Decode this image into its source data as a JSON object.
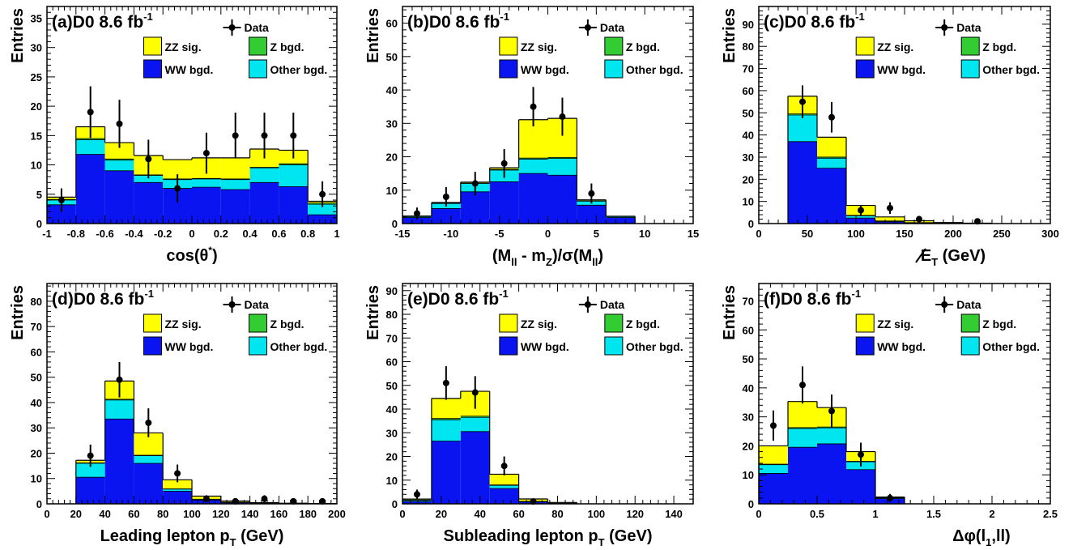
{
  "colors": {
    "zz": "#ffff00",
    "z": "#33cc33",
    "ww": "#0a14f0",
    "other": "#00e6f0",
    "data": "#000000"
  },
  "chart_data": [
    {
      "id": "a",
      "type": "bar",
      "stacked": true,
      "label_letter": "(a)",
      "label_rest": "D0 8.6 fb",
      "label_sup": "-1",
      "xlabel": "cos(θ",
      "xlabel_sup": "*",
      "xlabel_tail": ")",
      "ylabel": "Entries",
      "xlim": [
        -1,
        1
      ],
      "ylim": [
        0,
        37
      ],
      "xticks": [
        -1,
        -0.8,
        -0.6,
        -0.4,
        -0.2,
        0,
        0.2,
        0.4,
        0.6,
        0.8,
        1
      ],
      "yticks": [
        0,
        5,
        10,
        15,
        20,
        25,
        30,
        35
      ],
      "bin_edges": [
        -1,
        -0.8,
        -0.6,
        -0.4,
        -0.2,
        0,
        0.2,
        0.4,
        0.6,
        0.8,
        1
      ],
      "series": [
        {
          "name": "WW bgd.",
          "key": "ww",
          "values": [
            3.2,
            11.8,
            9.0,
            7.0,
            6.0,
            6.2,
            5.8,
            7.0,
            6.3,
            1.5
          ]
        },
        {
          "name": "Other bgd.",
          "key": "other",
          "values": [
            0.8,
            2.5,
            1.8,
            1.2,
            1.5,
            1.4,
            1.7,
            2.5,
            3.7,
            1.8
          ]
        },
        {
          "name": "Z bgd.",
          "key": "z",
          "values": [
            0.1,
            0.2,
            0.2,
            0.1,
            0.1,
            0.1,
            0.1,
            0.1,
            0.2,
            0.2
          ]
        },
        {
          "name": "ZZ sig.",
          "key": "zz",
          "values": [
            0.4,
            2.0,
            2.8,
            3.3,
            3.3,
            3.5,
            3.6,
            3.1,
            2.3,
            0.3
          ]
        }
      ],
      "data": {
        "x": [
          -0.9,
          -0.7,
          -0.5,
          -0.3,
          -0.1,
          0.1,
          0.3,
          0.5,
          0.7,
          0.9
        ],
        "y": [
          4,
          19,
          17,
          11,
          6,
          12,
          15,
          15,
          15,
          5
        ],
        "err": [
          2.0,
          4.4,
          4.1,
          3.3,
          2.4,
          3.5,
          3.9,
          3.9,
          3.9,
          2.2
        ]
      }
    },
    {
      "id": "b",
      "type": "bar",
      "stacked": true,
      "label_letter": "(b)",
      "label_rest": "D0 8.6 fb",
      "label_sup": "-1",
      "xlabel": "(M",
      "xlabel_sub": "ll",
      "xlabel_mid": " - m",
      "xlabel_sub2": "Z",
      "xlabel_tail": ")/σ(M",
      "xlabel_sub3": "ll",
      "xlabel_end": ")",
      "ylabel": "Entries",
      "xlim": [
        -15,
        15
      ],
      "ylim": [
        0,
        65
      ],
      "xticks": [
        -15,
        -10,
        -5,
        0,
        5,
        10,
        15
      ],
      "yticks": [
        0,
        10,
        20,
        30,
        40,
        50,
        60
      ],
      "bin_edges": [
        -15,
        -12,
        -9,
        -6,
        -3,
        0,
        3,
        6,
        9
      ],
      "series": [
        {
          "name": "WW bgd.",
          "key": "ww",
          "values": [
            1.8,
            4.5,
            9.5,
            12.5,
            15.0,
            14.5,
            5.5,
            1.8
          ]
        },
        {
          "name": "Other bgd.",
          "key": "other",
          "values": [
            0.3,
            1.5,
            2.5,
            3.5,
            4.3,
            5.0,
            1.2,
            0.3
          ]
        },
        {
          "name": "Z bgd.",
          "key": "z",
          "values": [
            0.05,
            0.1,
            0.1,
            0.2,
            0.3,
            0.3,
            0.1,
            0.05
          ]
        },
        {
          "name": "ZZ sig.",
          "key": "zz",
          "values": [
            0.1,
            0.2,
            0.3,
            0.5,
            11.5,
            11.7,
            0.3,
            0.05
          ]
        }
      ],
      "data": {
        "x": [
          -13.5,
          -10.5,
          -7.5,
          -4.5,
          -1.5,
          1.5,
          4.5
        ],
        "y": [
          3,
          8,
          12,
          18,
          35,
          32,
          9
        ],
        "err": [
          1.8,
          2.9,
          3.5,
          4.3,
          5.9,
          5.7,
          3.0
        ]
      }
    },
    {
      "id": "c",
      "type": "bar",
      "stacked": true,
      "label_letter": "(c)",
      "label_rest": "D0 8.6 fb",
      "label_sup": "-1",
      "xlabel": "E",
      "xlabel_sub": "T",
      "xlabel_tail": " (GeV)",
      "ylabel": "Entries",
      "xlim": [
        0,
        300
      ],
      "ylim": [
        0,
        98
      ],
      "xticks": [
        0,
        50,
        100,
        150,
        200,
        250,
        300
      ],
      "yticks": [
        0,
        10,
        20,
        30,
        40,
        50,
        60,
        70,
        80,
        90
      ],
      "bin_edges": [
        30,
        60,
        90,
        120,
        150,
        180,
        210,
        240
      ],
      "series": [
        {
          "name": "WW bgd.",
          "key": "ww",
          "values": [
            37,
            25,
            2.5,
            0.8,
            0.3,
            0.1,
            0.05
          ]
        },
        {
          "name": "Other bgd.",
          "key": "other",
          "values": [
            12,
            4.5,
            1.0,
            0.3,
            0.1,
            0.05,
            0.02
          ]
        },
        {
          "name": "Z bgd.",
          "key": "z",
          "values": [
            0.5,
            0.5,
            0.2,
            0.1,
            0.05,
            0.02,
            0.01
          ]
        },
        {
          "name": "ZZ sig.",
          "key": "zz",
          "values": [
            8,
            9,
            4.5,
            1.8,
            0.8,
            0.3,
            0.1
          ]
        }
      ],
      "data": {
        "x": [
          45,
          75,
          105,
          135,
          165,
          225
        ],
        "y": [
          55,
          48,
          6,
          7,
          2,
          1
        ],
        "err": [
          7.4,
          6.9,
          2.4,
          2.6,
          1.4,
          1.0
        ]
      }
    },
    {
      "id": "d",
      "type": "bar",
      "stacked": true,
      "label_letter": "(d)",
      "label_rest": "D0 8.6 fb",
      "label_sup": "-1",
      "xlabel": "Leading lepton p",
      "xlabel_sub": "T",
      "xlabel_tail": " (GeV)",
      "ylabel": "Entries",
      "xlim": [
        0,
        200
      ],
      "ylim": [
        0,
        87
      ],
      "xticks": [
        0,
        20,
        40,
        60,
        80,
        100,
        120,
        140,
        160,
        180,
        200
      ],
      "yticks": [
        0,
        10,
        20,
        30,
        40,
        50,
        60,
        70,
        80
      ],
      "bin_edges": [
        20,
        40,
        60,
        80,
        100,
        120,
        140,
        160,
        180,
        200
      ],
      "series": [
        {
          "name": "WW bgd.",
          "key": "ww",
          "values": [
            10.5,
            33.5,
            16,
            5,
            1.5,
            0.5,
            0.2,
            0.1,
            0.05
          ]
        },
        {
          "name": "Other bgd.",
          "key": "other",
          "values": [
            5.5,
            7.5,
            3,
            0.8,
            0.3,
            0.1,
            0.05,
            0.02,
            0.01
          ]
        },
        {
          "name": "Z bgd.",
          "key": "z",
          "values": [
            0.2,
            0.3,
            0.2,
            0.1,
            0.05,
            0.02,
            0.01,
            0.01,
            0.01
          ]
        },
        {
          "name": "ZZ sig.",
          "key": "zz",
          "values": [
            1,
            7.2,
            8.8,
            3.6,
            1.2,
            0.5,
            0.2,
            0.1,
            0.05
          ]
        }
      ],
      "data": {
        "x": [
          30,
          50,
          70,
          90,
          110,
          130,
          150,
          170,
          190
        ],
        "y": [
          19,
          49,
          32,
          12,
          2,
          1,
          2,
          1,
          1
        ],
        "err": [
          4.4,
          7.0,
          5.7,
          3.5,
          1.4,
          1.0,
          1.4,
          1.0,
          1.0
        ]
      }
    },
    {
      "id": "e",
      "type": "bar",
      "stacked": true,
      "label_letter": "(e)",
      "label_rest": "D0 8.6 fb",
      "label_sup": "-1",
      "xlabel": "Subleading lepton p",
      "xlabel_sub": "T",
      "xlabel_tail": " (GeV)",
      "ylabel": "Entries",
      "xlim": [
        0,
        150
      ],
      "ylim": [
        0,
        93
      ],
      "xticks": [
        0,
        20,
        40,
        60,
        80,
        100,
        120,
        140
      ],
      "yticks": [
        0,
        10,
        20,
        30,
        40,
        50,
        60,
        70,
        80,
        90
      ],
      "bin_edges": [
        0,
        15,
        30,
        45,
        60,
        75,
        90
      ],
      "series": [
        {
          "name": "WW bgd.",
          "key": "ww",
          "values": [
            1.0,
            26.5,
            30.5,
            6.5,
            0.8,
            0.2
          ]
        },
        {
          "name": "Other bgd.",
          "key": "other",
          "values": [
            0.5,
            9,
            6,
            1.3,
            0.2,
            0.05
          ]
        },
        {
          "name": "Z bgd.",
          "key": "z",
          "values": [
            0.1,
            0.5,
            0.5,
            0.2,
            0.05,
            0.02
          ]
        },
        {
          "name": "ZZ sig.",
          "key": "zz",
          "values": [
            0.4,
            8.5,
            10.5,
            4.5,
            1.0,
            0.3
          ]
        }
      ],
      "data": {
        "x": [
          7.5,
          22.5,
          37.5,
          52.5,
          67.5
        ],
        "y": [
          4,
          51,
          47,
          16,
          1
        ],
        "err": [
          2.0,
          7.1,
          6.9,
          4.0,
          1.0
        ]
      }
    },
    {
      "id": "f",
      "type": "bar",
      "stacked": true,
      "label_letter": "(f)",
      "label_rest": "D0 8.6 fb",
      "label_sup": "-1",
      "xlabel": "Δφ(l",
      "xlabel_sub": "1",
      "xlabel_tail": ",ll)",
      "ylabel": "Entries",
      "xlim": [
        0,
        2.5
      ],
      "ylim": [
        0,
        76
      ],
      "xticks": [
        0,
        0.5,
        1,
        1.5,
        2,
        2.5
      ],
      "yticks": [
        0,
        10,
        20,
        30,
        40,
        50,
        60,
        70
      ],
      "bin_edges": [
        0,
        0.25,
        0.5,
        0.75,
        1.0,
        1.25
      ],
      "series": [
        {
          "name": "WW bgd.",
          "key": "ww",
          "values": [
            10.5,
            19.5,
            20.7,
            11.8,
            1.8
          ]
        },
        {
          "name": "Other bgd.",
          "key": "other",
          "values": [
            3.0,
            6.5,
            5.5,
            2.7,
            0.3
          ]
        },
        {
          "name": "Z bgd.",
          "key": "z",
          "values": [
            0.2,
            0.3,
            0.3,
            0.2,
            0.05
          ]
        },
        {
          "name": "ZZ sig.",
          "key": "zz",
          "values": [
            6.3,
            9.0,
            6.7,
            3.3,
            0.2
          ]
        }
      ],
      "data": {
        "x": [
          0.125,
          0.375,
          0.625,
          0.875,
          1.125
        ],
        "y": [
          27,
          41,
          32,
          17,
          2
        ],
        "err": [
          5.2,
          6.4,
          5.7,
          4.1,
          1.4
        ]
      }
    }
  ],
  "legend": {
    "data_label": "Data",
    "zz_label": "ZZ sig.",
    "z_label": "Z bgd.",
    "ww_label": "WW bgd.",
    "other_label": "Other bgd."
  }
}
